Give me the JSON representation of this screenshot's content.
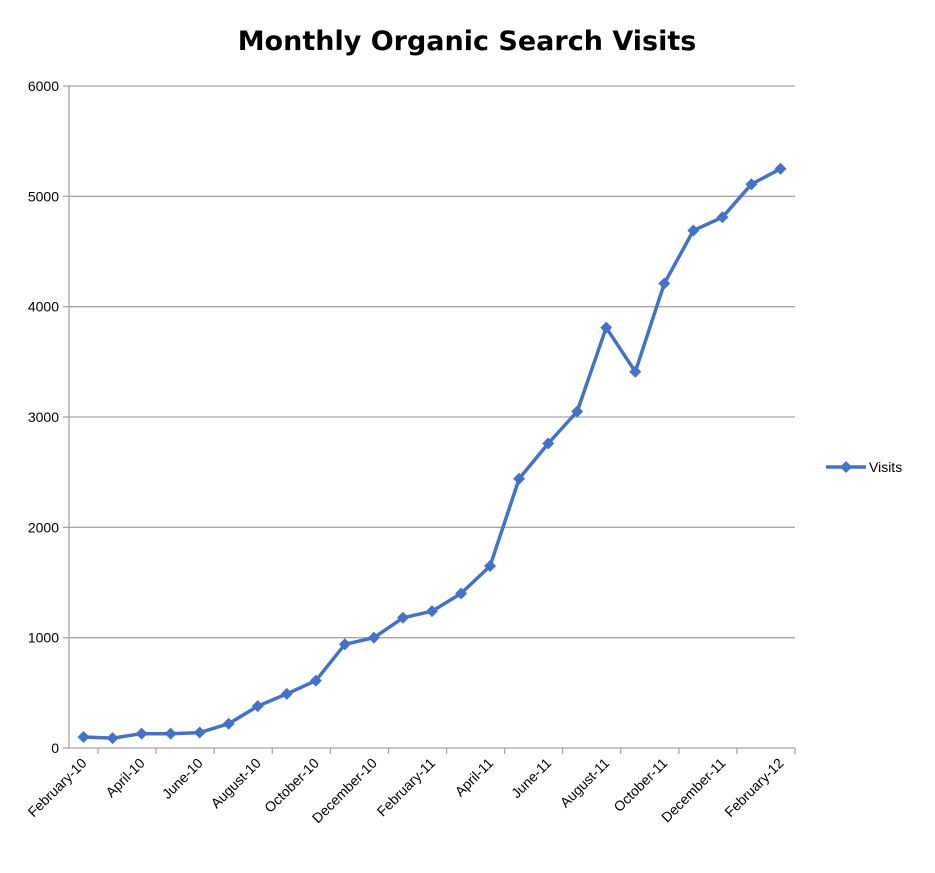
{
  "chart_data": {
    "type": "line",
    "title": "Monthly Organic Search Visits",
    "xlabel": "",
    "ylabel": "",
    "ylim": [
      0,
      6000
    ],
    "yticks": [
      "0",
      "1000",
      "2000",
      "3000",
      "4000",
      "5000",
      "6000"
    ],
    "grid": true,
    "legend": "right",
    "x": [
      "February-10",
      "March-10",
      "April-10",
      "May-10",
      "June-10",
      "July-10",
      "August-10",
      "September-10",
      "October-10",
      "November-10",
      "December-10",
      "January-11",
      "February-11",
      "March-11",
      "April-11",
      "May-11",
      "June-11",
      "July-11",
      "August-11",
      "September-11",
      "October-11",
      "November-11",
      "December-11",
      "January-12",
      "February-12"
    ],
    "xticks": [
      "February-10",
      "April-10",
      "June-10",
      "August-10",
      "October-10",
      "December-10",
      "February-11",
      "April-11",
      "June-11",
      "August-11",
      "October-11",
      "December-11",
      "February-12"
    ],
    "series": [
      {
        "name": "Visits",
        "color": "#4472C4",
        "values": [
          100,
          90,
          130,
          130,
          140,
          220,
          380,
          490,
          610,
          940,
          1000,
          1180,
          1240,
          1400,
          1650,
          2440,
          2760,
          3050,
          3810,
          3410,
          4210,
          4690,
          4810,
          5110,
          5250
        ]
      }
    ]
  }
}
